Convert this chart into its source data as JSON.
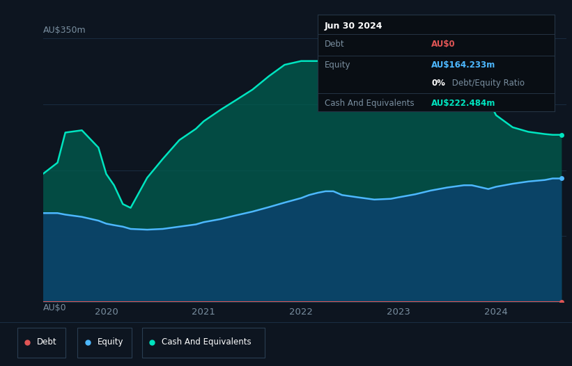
{
  "bg_color": "#0d1520",
  "plot_bg_color": "#0d1520",
  "ylabel_top": "AU$350m",
  "ylabel_bottom": "AU$0",
  "grid_color": "#1a2d42",
  "text_color": "#7a8fa0",
  "tooltip_bg": "#090e14",
  "tooltip_border": "#253545",
  "tooltip_title": "Jun 30 2024",
  "tooltip_debt_label": "Debt",
  "tooltip_debt_value": "AU$0",
  "tooltip_debt_color": "#e05555",
  "tooltip_equity_label": "Equity",
  "tooltip_equity_value": "AU$164.233m",
  "tooltip_equity_color": "#4db8ff",
  "tooltip_ratio_value": "0%",
  "tooltip_ratio_label": " Debt/Equity Ratio",
  "tooltip_ratio_color": "#ffffff",
  "tooltip_cash_label": "Cash And Equivalents",
  "tooltip_cash_value": "AU$222.484m",
  "tooltip_cash_color": "#00e5c0",
  "debt_color": "#e05555",
  "equity_color": "#4db8ff",
  "cash_color": "#00e5c0",
  "ymax": 350,
  "ymin": 0,
  "xmin": 2019.35,
  "xmax": 2024.72,
  "time": [
    2019.35,
    2019.5,
    2019.58,
    2019.75,
    2019.92,
    2020.0,
    2020.08,
    2020.17,
    2020.25,
    2020.42,
    2020.58,
    2020.75,
    2020.92,
    2021.0,
    2021.17,
    2021.33,
    2021.5,
    2021.67,
    2021.83,
    2022.0,
    2022.08,
    2022.17,
    2022.25,
    2022.33,
    2022.42,
    2022.58,
    2022.75,
    2022.92,
    2023.0,
    2023.17,
    2023.33,
    2023.5,
    2023.67,
    2023.75,
    2023.92,
    2024.0,
    2024.17,
    2024.33,
    2024.5,
    2024.58,
    2024.67
  ],
  "cash_values": [
    170,
    185,
    225,
    228,
    205,
    170,
    155,
    130,
    125,
    165,
    190,
    215,
    230,
    240,
    255,
    268,
    282,
    300,
    315,
    320,
    320,
    320,
    318,
    316,
    285,
    268,
    262,
    268,
    272,
    292,
    300,
    305,
    305,
    302,
    268,
    248,
    232,
    226,
    223,
    222,
    222
  ],
  "equity_values": [
    118,
    118,
    116,
    113,
    108,
    104,
    102,
    100,
    97,
    96,
    97,
    100,
    103,
    106,
    110,
    115,
    120,
    126,
    132,
    138,
    142,
    145,
    147,
    147,
    142,
    139,
    136,
    137,
    139,
    143,
    148,
    152,
    155,
    155,
    150,
    153,
    157,
    160,
    162,
    164,
    164
  ],
  "debt_values": [
    0,
    0,
    0,
    0,
    0,
    0,
    0,
    0,
    0,
    0,
    0,
    0,
    0,
    0,
    0,
    0,
    0,
    0,
    0,
    0,
    0,
    0,
    0,
    0,
    0,
    0,
    0,
    0,
    0,
    0,
    0,
    0,
    0,
    0,
    0,
    0,
    0,
    0,
    0,
    0,
    0
  ],
  "legend_items": [
    {
      "label": "Debt",
      "color": "#e05555"
    },
    {
      "label": "Equity",
      "color": "#4db8ff"
    },
    {
      "label": "Cash And Equivalents",
      "color": "#00e5c0"
    }
  ],
  "grid_yticks": [
    0,
    87.5,
    175,
    262.5,
    350
  ],
  "x_ticks": [
    2020,
    2021,
    2022,
    2023,
    2024
  ]
}
